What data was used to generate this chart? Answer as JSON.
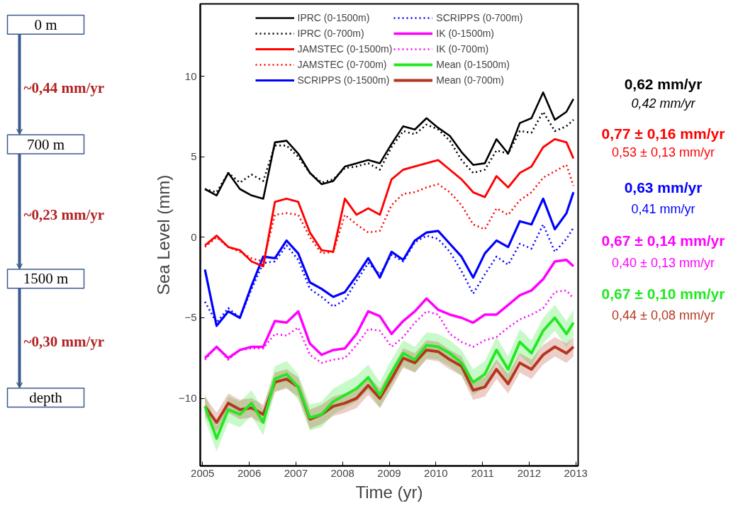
{
  "chart_data": {
    "type": "line",
    "xlabel": "Time (yr)",
    "ylabel": "Sea Level (mm)",
    "x": [
      2005.05,
      2005.3,
      2005.55,
      2005.8,
      2006.05,
      2006.3,
      2006.55,
      2006.8,
      2007.05,
      2007.3,
      2007.55,
      2007.8,
      2008.05,
      2008.3,
      2008.55,
      2008.8,
      2009.05,
      2009.3,
      2009.55,
      2009.8,
      2010.05,
      2010.3,
      2010.55,
      2010.8,
      2011.05,
      2011.3,
      2011.55,
      2011.8,
      2012.05,
      2012.3,
      2012.55,
      2012.8,
      2012.95
    ],
    "xlim": [
      2004.95,
      2013.05
    ],
    "ylim": [
      -14.2,
      14.5
    ],
    "xticks": [
      2005,
      2006,
      2007,
      2008,
      2009,
      2010,
      2011,
      2012,
      2013
    ],
    "yticks": [
      -10,
      -5,
      0,
      5,
      10
    ],
    "grid": false,
    "legend": "top",
    "marker": "none",
    "series": [
      {
        "name": "IPRC (0-1500m)",
        "color": "#000000",
        "line_style": "solid",
        "values": [
          3.0,
          2.6,
          4.0,
          3.0,
          2.6,
          2.4,
          5.9,
          6.0,
          5.2,
          4.0,
          3.3,
          3.5,
          4.4,
          4.6,
          4.8,
          4.6,
          5.8,
          6.9,
          6.7,
          7.4,
          6.8,
          6.3,
          5.3,
          4.5,
          4.6,
          6.1,
          5.2,
          7.1,
          7.4,
          9.0,
          7.3,
          7.8,
          8.6
        ]
      },
      {
        "name": "IPRC (0-700m)",
        "color": "#000000",
        "line_style": "dotted",
        "values": [
          3.0,
          2.8,
          4.0,
          3.4,
          3.9,
          3.5,
          5.7,
          5.7,
          5.0,
          4.0,
          3.4,
          3.6,
          4.3,
          4.4,
          4.6,
          4.2,
          5.6,
          6.6,
          6.4,
          7.0,
          6.7,
          6.0,
          4.8,
          4.0,
          4.2,
          5.4,
          5.2,
          6.6,
          6.5,
          7.8,
          6.6,
          6.9,
          7.3
        ]
      },
      {
        "name": "JAMSTEC (0-1500m)",
        "color": "#ff0000",
        "line_style": "solid",
        "values": [
          -0.5,
          0.1,
          -0.6,
          -0.8,
          -1.5,
          -1.8,
          2.2,
          2.4,
          2.2,
          0.3,
          -0.8,
          -0.9,
          2.4,
          1.4,
          1.8,
          1.4,
          3.6,
          4.2,
          4.4,
          4.6,
          4.8,
          4.2,
          3.6,
          2.8,
          2.5,
          3.8,
          3.1,
          4.0,
          4.4,
          5.6,
          6.1,
          5.9,
          4.9
        ]
      },
      {
        "name": "JAMSTEC (0-700m)",
        "color": "#ff0000",
        "line_style": "dotted",
        "values": [
          -0.6,
          0.0,
          -0.6,
          -0.9,
          -1.3,
          -1.5,
          1.4,
          1.5,
          1.4,
          0.0,
          -1.0,
          -0.9,
          1.4,
          0.8,
          0.3,
          0.4,
          2.0,
          2.7,
          2.8,
          3.1,
          3.3,
          2.8,
          2.0,
          0.8,
          0.5,
          1.8,
          1.4,
          2.3,
          2.8,
          3.7,
          4.1,
          4.5,
          3.2
        ]
      },
      {
        "name": "SCRIPPS (0-1500m)",
        "color": "#0000ff",
        "line_style": "solid",
        "values": [
          -2.0,
          -5.5,
          -4.6,
          -5.0,
          -3.0,
          -1.2,
          -1.3,
          -0.2,
          -1.0,
          -2.8,
          -3.2,
          -3.7,
          -3.4,
          -2.4,
          -1.3,
          -2.5,
          -0.9,
          -1.4,
          -0.2,
          0.3,
          0.4,
          -0.4,
          -1.2,
          -2.5,
          -1.0,
          -0.2,
          -0.6,
          1.0,
          0.8,
          2.4,
          0.5,
          1.5,
          2.8
        ]
      },
      {
        "name": "SCRIPPS (0-700m)",
        "color": "#0000ff",
        "line_style": "dotted",
        "values": [
          -4.0,
          -5.3,
          -4.4,
          -5.0,
          -3.2,
          -1.6,
          -1.5,
          -0.5,
          -1.4,
          -3.2,
          -3.7,
          -4.3,
          -3.9,
          -2.7,
          -1.6,
          -2.3,
          -1.1,
          -1.5,
          -0.3,
          0.1,
          -0.1,
          -0.9,
          -2.1,
          -3.5,
          -2.3,
          -1.2,
          -1.7,
          -0.4,
          -0.7,
          0.8,
          -0.9,
          -0.1,
          0.6
        ]
      },
      {
        "name": "IK (0-1500m)",
        "color": "#ff00ff",
        "line_style": "solid",
        "values": [
          -7.5,
          -6.8,
          -7.5,
          -7.0,
          -6.8,
          -6.8,
          -5.2,
          -5.3,
          -4.6,
          -6.6,
          -7.3,
          -7.0,
          -6.9,
          -6.0,
          -4.6,
          -4.9,
          -6.0,
          -5.2,
          -4.6,
          -3.8,
          -4.5,
          -4.8,
          -5.0,
          -5.3,
          -4.8,
          -4.8,
          -4.2,
          -3.6,
          -3.3,
          -2.6,
          -1.5,
          -1.4,
          -1.8
        ]
      },
      {
        "name": "IK (0-700m)",
        "color": "#ff00ff",
        "line_style": "dotted",
        "values": [
          -7.6,
          -6.8,
          -7.6,
          -7.0,
          -6.9,
          -6.9,
          -6.0,
          -6.1,
          -5.6,
          -7.3,
          -7.8,
          -7.6,
          -7.5,
          -6.7,
          -5.7,
          -5.8,
          -6.8,
          -6.2,
          -5.3,
          -4.6,
          -4.8,
          -6.0,
          -6.5,
          -6.8,
          -6.4,
          -6.2,
          -5.6,
          -5.1,
          -4.8,
          -4.4,
          -3.4,
          -3.3,
          -3.8
        ]
      },
      {
        "name": "Mean (0-1500m)",
        "color": "#22e822",
        "line_style": "solid",
        "values": [
          -10.5,
          -12.5,
          -10.7,
          -11.0,
          -10.3,
          -11.5,
          -8.8,
          -8.5,
          -9.3,
          -11.2,
          -11.0,
          -10.2,
          -9.8,
          -9.4,
          -8.7,
          -9.8,
          -8.4,
          -7.2,
          -7.6,
          -6.7,
          -6.8,
          -7.2,
          -7.8,
          -9.0,
          -8.5,
          -7.0,
          -8.2,
          -6.5,
          -7.2,
          -5.8,
          -5.0,
          -6.0,
          -5.3
        ],
        "lower": [
          -11.3,
          -13.3,
          -11.5,
          -11.8,
          -11.1,
          -12.3,
          -9.6,
          -9.3,
          -10.1,
          -12.0,
          -11.8,
          -11.0,
          -10.6,
          -10.2,
          -9.5,
          -10.6,
          -9.2,
          -8.0,
          -8.4,
          -7.5,
          -7.6,
          -8.0,
          -8.6,
          -9.8,
          -9.3,
          -7.8,
          -9.0,
          -7.3,
          -8.0,
          -6.6,
          -5.8,
          -6.8,
          -6.1
        ],
        "upper": [
          -9.7,
          -11.7,
          -9.9,
          -10.2,
          -9.5,
          -10.7,
          -8.0,
          -7.7,
          -8.5,
          -10.4,
          -10.2,
          -9.4,
          -9.0,
          -8.6,
          -7.9,
          -9.0,
          -7.6,
          -6.4,
          -6.8,
          -5.9,
          -6.0,
          -6.4,
          -7.0,
          -8.2,
          -7.7,
          -6.2,
          -7.4,
          -5.7,
          -6.4,
          -5.0,
          -4.2,
          -5.2,
          -4.5
        ]
      },
      {
        "name": "Mean (0-700m)",
        "color": "#b5361f",
        "line_style": "solid",
        "values": [
          -10.5,
          -11.5,
          -10.3,
          -10.7,
          -10.6,
          -11.0,
          -9.0,
          -8.8,
          -9.3,
          -11.3,
          -11.0,
          -10.5,
          -10.3,
          -10.0,
          -9.2,
          -10.0,
          -8.8,
          -7.5,
          -7.8,
          -7.0,
          -7.1,
          -7.6,
          -8.0,
          -9.5,
          -9.3,
          -8.2,
          -9.1,
          -7.8,
          -8.2,
          -7.3,
          -6.8,
          -7.2,
          -6.8
        ],
        "lower": [
          -11.1,
          -12.1,
          -10.9,
          -11.3,
          -11.2,
          -11.6,
          -9.6,
          -9.4,
          -9.9,
          -11.9,
          -11.6,
          -11.1,
          -10.9,
          -10.6,
          -9.8,
          -10.6,
          -9.4,
          -8.1,
          -8.4,
          -7.6,
          -7.7,
          -8.2,
          -8.6,
          -10.1,
          -9.9,
          -8.8,
          -9.7,
          -8.4,
          -8.8,
          -7.9,
          -7.4,
          -7.8,
          -7.4
        ],
        "upper": [
          -9.9,
          -10.9,
          -9.7,
          -10.1,
          -10.0,
          -10.4,
          -8.4,
          -8.2,
          -8.7,
          -10.7,
          -10.4,
          -9.9,
          -9.7,
          -9.4,
          -8.6,
          -9.4,
          -8.2,
          -6.9,
          -7.2,
          -6.4,
          -6.5,
          -7.0,
          -7.4,
          -8.9,
          -8.7,
          -7.6,
          -8.5,
          -7.2,
          -7.6,
          -6.7,
          -6.2,
          -6.6,
          -6.2
        ]
      }
    ],
    "annotations": [
      "0,62 mm/yr",
      "0,42 mm/yr",
      "0,77 ± 0,16 mm/yr",
      "0,53 ± 0,13 mm/yr",
      "0,63 mm/yr",
      "0,41 mm/yr",
      "0,67 ± 0,14 mm/yr",
      "0,40 ± 0,13 mm/yr",
      "0,67 ± 0,10 mm/yr",
      "0,44 ± 0,08 mm/yr",
      "0 m",
      "~0,44 mm/yr",
      "700 m",
      "~0,23 mm/yr",
      "1500 m",
      "~0,30 mm/yr",
      "depth"
    ]
  }
}
